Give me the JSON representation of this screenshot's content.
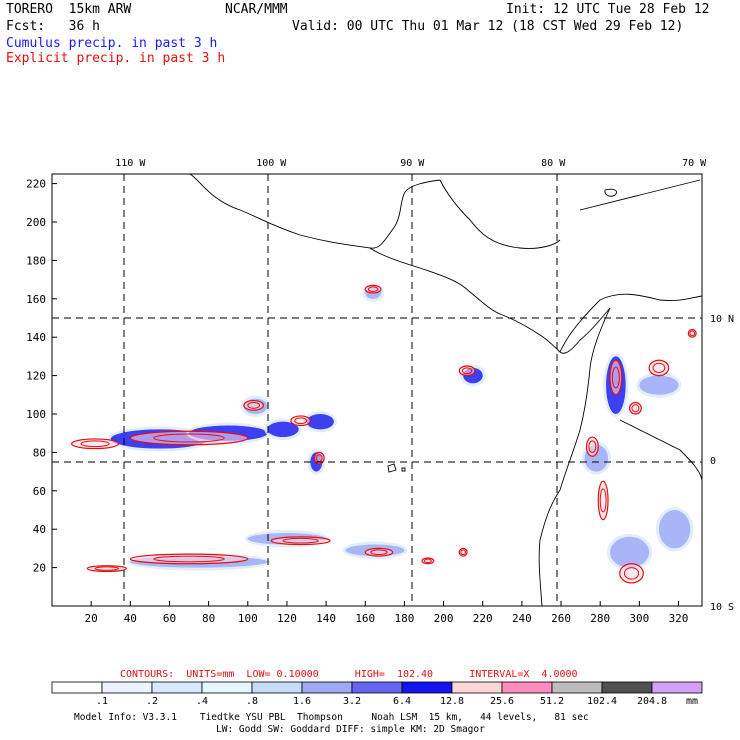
{
  "header": {
    "model": "TORERO  15km ARW",
    "center": "NCAR/MMM",
    "init": "Init: 12 UTC Tue 28 Feb 12",
    "fcst": "Fcst:   36 h",
    "valid": "Valid: 00 UTC Thu 01 Mar 12 (18 CST Wed 29 Feb 12)",
    "field1": "Cumulus precip. in past 3 h",
    "field2": "Explicit precip. in past 3 h"
  },
  "colors": {
    "cumulus": "#1a1aff",
    "explicit": "#e01010"
  },
  "chart_data": {
    "type": "heatmap",
    "title": "Cumulus / Explicit precip. in past 3 h",
    "x_grid_ticks": [
      20,
      40,
      60,
      80,
      100,
      120,
      140,
      160,
      180,
      200,
      220,
      240,
      260,
      280,
      300,
      320
    ],
    "y_grid_ticks": [
      20,
      40,
      60,
      80,
      100,
      120,
      140,
      160,
      180,
      200,
      220
    ],
    "xlim": [
      0,
      332
    ],
    "ylim": [
      0,
      225
    ],
    "lon_labels": [
      {
        "text": "110 W",
        "x": 40
      },
      {
        "text": "100 W",
        "x": 112
      },
      {
        "text": "90 W",
        "x": 184
      },
      {
        "text": "80 W",
        "x": 256
      },
      {
        "text": "70 W",
        "x": 328
      }
    ],
    "lat_labels": [
      {
        "text": "10 N",
        "y": 150
      },
      {
        "text": "0",
        "y": 76
      },
      {
        "text": "10 S",
        "y": 0
      }
    ],
    "precip_regions": [
      {
        "x": 30,
        "y": 82,
        "w": 50,
        "h": 10,
        "level": 3
      },
      {
        "x": 70,
        "y": 86,
        "w": 40,
        "h": 8,
        "level": 3
      },
      {
        "x": 98,
        "y": 100,
        "w": 12,
        "h": 8,
        "level": 2
      },
      {
        "x": 110,
        "y": 88,
        "w": 16,
        "h": 8,
        "level": 3
      },
      {
        "x": 130,
        "y": 92,
        "w": 14,
        "h": 8,
        "level": 3
      },
      {
        "x": 132,
        "y": 70,
        "w": 6,
        "h": 10,
        "level": 3
      },
      {
        "x": 160,
        "y": 160,
        "w": 8,
        "h": 6,
        "level": 2
      },
      {
        "x": 210,
        "y": 116,
        "w": 10,
        "h": 8,
        "level": 3
      },
      {
        "x": 40,
        "y": 20,
        "w": 70,
        "h": 6,
        "level": 2
      },
      {
        "x": 100,
        "y": 32,
        "w": 40,
        "h": 6,
        "level": 2
      },
      {
        "x": 150,
        "y": 26,
        "w": 30,
        "h": 6,
        "level": 2
      },
      {
        "x": 283,
        "y": 100,
        "w": 10,
        "h": 30,
        "level": 3
      },
      {
        "x": 300,
        "y": 110,
        "w": 20,
        "h": 10,
        "level": 2
      },
      {
        "x": 272,
        "y": 70,
        "w": 12,
        "h": 14,
        "level": 2
      },
      {
        "x": 285,
        "y": 20,
        "w": 20,
        "h": 16,
        "level": 2
      },
      {
        "x": 310,
        "y": 30,
        "w": 16,
        "h": 20,
        "level": 2
      }
    ],
    "explicit_contours": [
      {
        "x": 40,
        "y": 84,
        "w": 60,
        "h": 7
      },
      {
        "x": 10,
        "y": 82,
        "w": 24,
        "h": 5
      },
      {
        "x": 98,
        "y": 102,
        "w": 10,
        "h": 5
      },
      {
        "x": 122,
        "y": 94,
        "w": 10,
        "h": 5
      },
      {
        "x": 134,
        "y": 74,
        "w": 5,
        "h": 6
      },
      {
        "x": 160,
        "y": 163,
        "w": 8,
        "h": 4
      },
      {
        "x": 208,
        "y": 120,
        "w": 8,
        "h": 5
      },
      {
        "x": 40,
        "y": 22,
        "w": 60,
        "h": 5
      },
      {
        "x": 18,
        "y": 18,
        "w": 20,
        "h": 3
      },
      {
        "x": 112,
        "y": 32,
        "w": 30,
        "h": 4
      },
      {
        "x": 160,
        "y": 26,
        "w": 14,
        "h": 4
      },
      {
        "x": 189,
        "y": 22,
        "w": 6,
        "h": 3
      },
      {
        "x": 208,
        "y": 26,
        "w": 4,
        "h": 4
      },
      {
        "x": 285,
        "y": 110,
        "w": 6,
        "h": 18
      },
      {
        "x": 295,
        "y": 100,
        "w": 6,
        "h": 6
      },
      {
        "x": 305,
        "y": 120,
        "w": 10,
        "h": 8
      },
      {
        "x": 273,
        "y": 78,
        "w": 6,
        "h": 10
      },
      {
        "x": 279,
        "y": 45,
        "w": 5,
        "h": 20
      },
      {
        "x": 290,
        "y": 12,
        "w": 12,
        "h": 10
      },
      {
        "x": 325,
        "y": 140,
        "w": 4,
        "h": 4
      }
    ]
  },
  "contour_info": {
    "text": "CONTOURS:  UNITS=mm  LOW= 0.10000      HIGH=  102.40      INTERVAL=X  4.0000"
  },
  "colorbar": {
    "labels": [
      ".1",
      ".2",
      ".4",
      ".8",
      "1.6",
      "3.2",
      "6.4",
      "12.8",
      "25.6",
      "51.2",
      "102.4",
      "204.8"
    ],
    "colors": [
      "#ffffff",
      "#eef4ff",
      "#d8e8ff",
      "#e6f6ff",
      "#c6dcf8",
      "#9eaaf5",
      "#6464f0",
      "#1414f0",
      "#ffd7d7",
      "#ff8cbe",
      "#bcbcbc",
      "#505050",
      "#d2a0f5"
    ],
    "unit": "mm"
  },
  "footer": {
    "line1": "Model Info: V3.3.1    Tiedtke YSU PBL  Thompson     Noah LSM  15 km,   44 levels,   81 sec",
    "line2": "LW: Godd SW: Goddard DIFF: simple KM: 2D Smagor"
  }
}
